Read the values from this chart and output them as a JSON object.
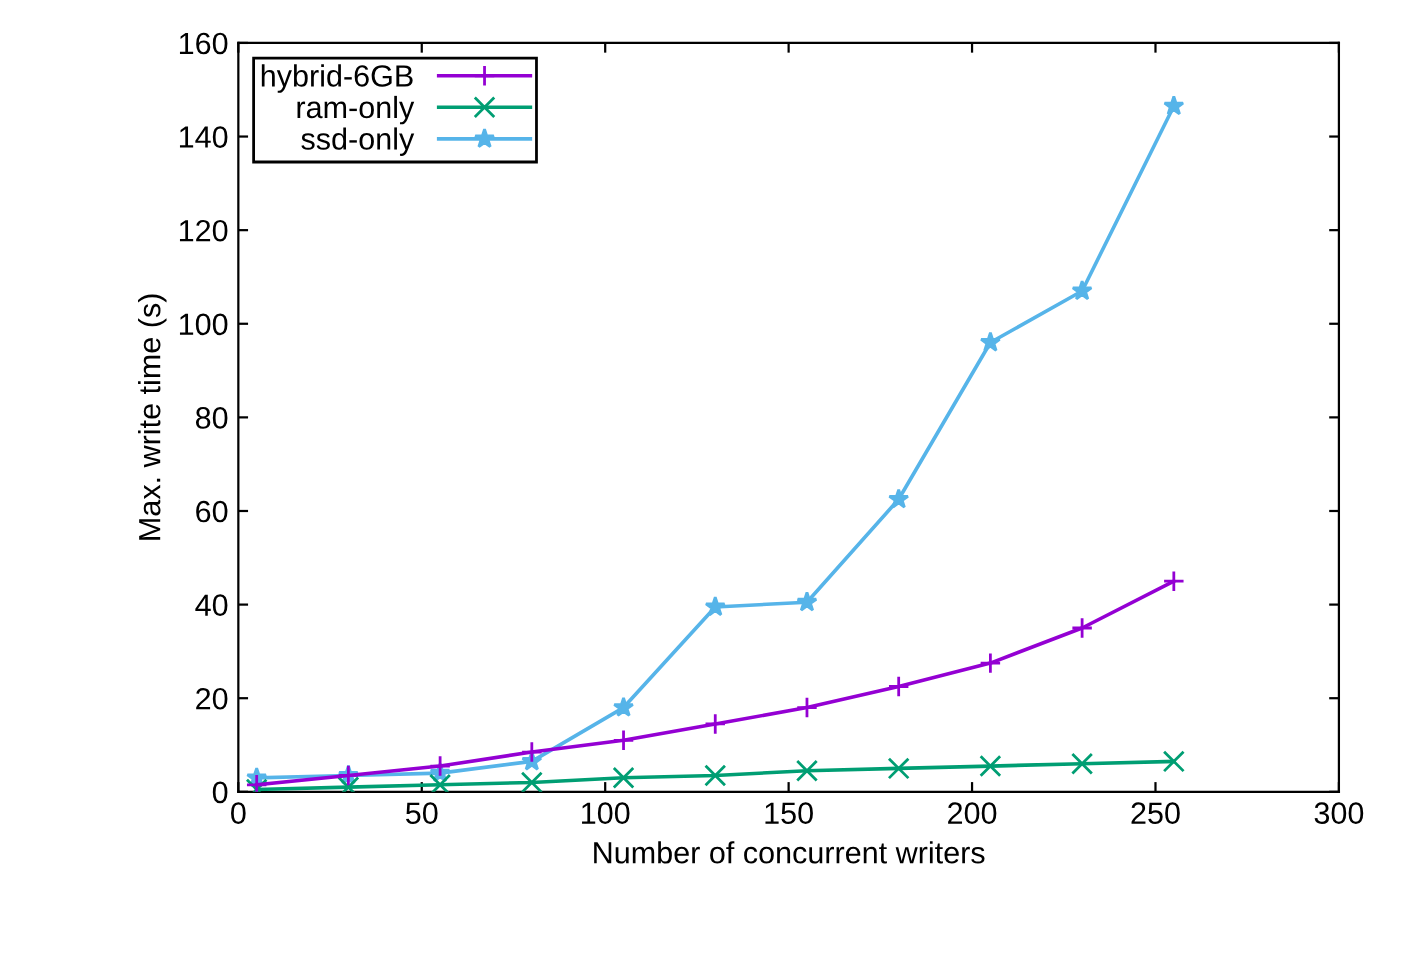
{
  "chart_data": {
    "type": "line",
    "xlabel": "Number of concurrent writers",
    "ylabel": "Max. write time (s)",
    "xlim": [
      0,
      300
    ],
    "xticks": [
      0,
      50,
      100,
      150,
      200,
      250,
      300
    ],
    "ylim": [
      0,
      160
    ],
    "yticks": [
      0,
      20,
      40,
      60,
      80,
      100,
      120,
      140,
      160
    ],
    "x": [
      5,
      30,
      55,
      80,
      105,
      130,
      155,
      180,
      205,
      230,
      255
    ],
    "series": [
      {
        "name": "hybrid-6GB",
        "color": "#9400d3",
        "marker": "plus",
        "values": [
          1.5,
          3.5,
          5.5,
          8.5,
          11,
          14.5,
          18,
          22.5,
          27.5,
          35,
          45
        ]
      },
      {
        "name": "ram-only",
        "color": "#009e73",
        "marker": "cross",
        "values": [
          0.5,
          1,
          1.5,
          2,
          3,
          3.5,
          4.5,
          5,
          5.5,
          6,
          6.5
        ]
      },
      {
        "name": "ssd-only",
        "color": "#56b4e9",
        "marker": "star",
        "values": [
          3,
          3.5,
          4,
          6.5,
          18,
          39.5,
          40.5,
          62.5,
          96,
          107,
          146.5
        ]
      }
    ],
    "legend": "top left",
    "grid": false,
    "line_style": "solid"
  }
}
